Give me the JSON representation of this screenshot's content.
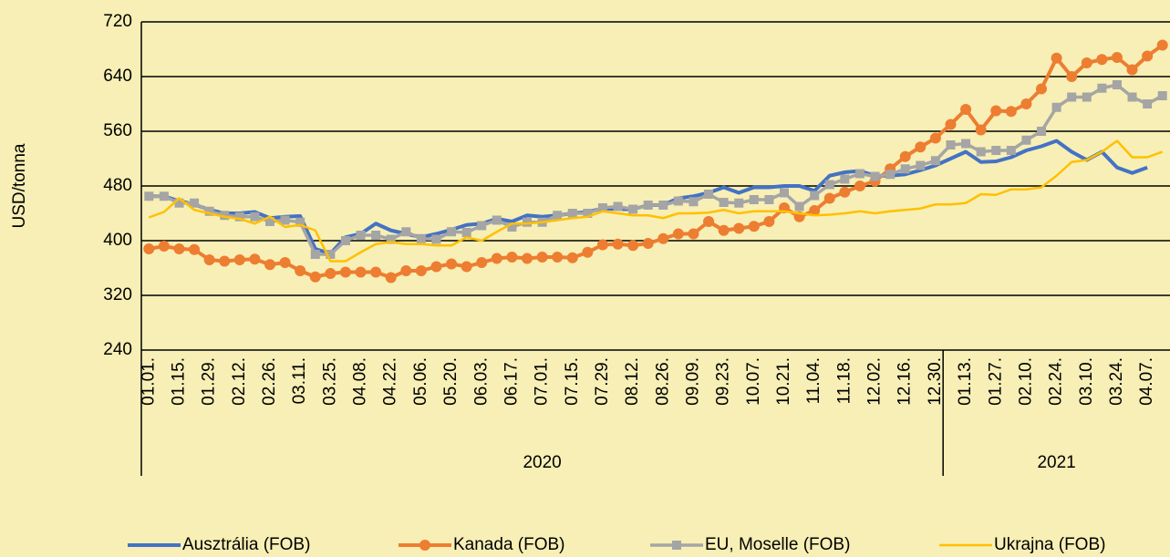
{
  "chart_data": {
    "type": "line",
    "ylabel": "USD/tonna",
    "categories": [
      "01.01.",
      null,
      "01.15.",
      null,
      "01.29.",
      null,
      "02.12.",
      null,
      "02.26.",
      null,
      "03.11.",
      null,
      "03.25.",
      null,
      "04.08.",
      null,
      "04.22.",
      null,
      "05.06.",
      null,
      "05.20.",
      null,
      "06.03.",
      null,
      "06.17.",
      null,
      "07.01.",
      null,
      "07.15.",
      null,
      "07.29.",
      null,
      "08.12.",
      null,
      "08.26.",
      null,
      "09.09.",
      null,
      "09.23.",
      null,
      "10.07.",
      null,
      "10.21.",
      null,
      "11.04.",
      null,
      "11.18.",
      null,
      "12.02.",
      null,
      "12.16.",
      null,
      "12.30.",
      null,
      "01.13.",
      null,
      "01.27.",
      null,
      "02.10.",
      null,
      "02.24.",
      null,
      "03.10.",
      null,
      "03.24.",
      null,
      "04.07.",
      null
    ],
    "groups": [
      {
        "label": "2020",
        "start": 0
      },
      {
        "label": "2021",
        "start": 53
      }
    ],
    "series": [
      {
        "name": "Ausztrália (FOB)",
        "color": "#4472c4",
        "marker": null,
        "width": 4,
        "values": [
          465,
          465,
          458,
          453,
          445,
          440,
          440,
          442,
          433,
          435,
          436,
          388,
          381,
          405,
          410,
          425,
          415,
          410,
          405,
          410,
          416,
          423,
          425,
          432,
          428,
          437,
          435,
          437,
          440,
          442,
          447,
          446,
          446,
          452,
          452,
          462,
          465,
          470,
          478,
          470,
          478,
          478,
          480,
          480,
          473,
          495,
          500,
          502,
          495,
          495,
          497,
          503,
          510,
          520,
          530,
          515,
          516,
          522,
          532,
          538,
          546,
          530,
          518,
          530,
          507,
          499,
          507,
          null
        ]
      },
      {
        "name": "Kanada (FOB)",
        "color": "#ed7d31",
        "marker": "circle",
        "width": 4,
        "values": [
          388,
          392,
          388,
          387,
          372,
          370,
          372,
          373,
          365,
          368,
          356,
          347,
          352,
          354,
          354,
          354,
          346,
          356,
          356,
          362,
          366,
          362,
          368,
          374,
          376,
          374,
          376,
          376,
          375,
          383,
          394,
          395,
          393,
          396,
          403,
          410,
          410,
          428,
          415,
          418,
          421,
          428,
          448,
          435,
          444,
          462,
          471,
          480,
          487,
          505,
          523,
          537,
          550,
          570,
          592,
          562,
          590,
          589,
          600,
          622,
          667,
          640,
          660,
          665,
          668,
          650,
          670,
          686
        ]
      },
      {
        "name": "EU, Moselle (FOB)",
        "color": "#a5a5a5",
        "marker": "square",
        "width": 3.5,
        "values": [
          465,
          465,
          455,
          455,
          443,
          437,
          435,
          435,
          428,
          430,
          427,
          380,
          380,
          400,
          408,
          408,
          402,
          413,
          403,
          402,
          413,
          412,
          422,
          430,
          420,
          427,
          427,
          437,
          440,
          440,
          448,
          450,
          446,
          452,
          452,
          458,
          457,
          468,
          456,
          455,
          460,
          460,
          470,
          450,
          466,
          482,
          490,
          498,
          494,
          497,
          505,
          510,
          517,
          540,
          542,
          530,
          532,
          532,
          547,
          560,
          595,
          610,
          610,
          623,
          628,
          610,
          600,
          612
        ]
      },
      {
        "name": "Ukrajna (FOB)",
        "color": "#ffc000",
        "marker": null,
        "width": 2.5,
        "values": [
          434,
          442,
          462,
          445,
          440,
          435,
          432,
          425,
          435,
          420,
          423,
          415,
          370,
          370,
          383,
          395,
          398,
          395,
          395,
          393,
          393,
          405,
          400,
          413,
          425,
          425,
          427,
          430,
          433,
          435,
          443,
          440,
          437,
          437,
          433,
          440,
          440,
          441,
          445,
          440,
          443,
          443,
          443,
          440,
          437,
          438,
          440,
          443,
          440,
          443,
          445,
          447,
          453,
          453,
          455,
          468,
          467,
          475,
          475,
          478,
          495,
          515,
          518,
          530,
          546,
          522,
          522,
          530
        ]
      }
    ],
    "ylim": [
      240,
      720
    ],
    "yticks": [
      240,
      320,
      400,
      480,
      560,
      640,
      720
    ],
    "grid": true,
    "legend": "bottom"
  }
}
